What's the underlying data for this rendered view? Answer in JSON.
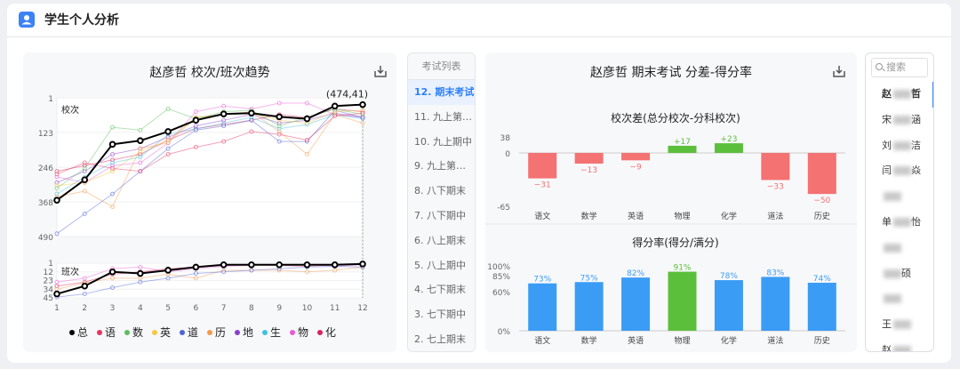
{
  "header": {
    "title": "学生个人分析",
    "icon": "user-icon",
    "accent": "#3b82f6"
  },
  "trend": {
    "title": "赵彦哲 校次/班次趋势",
    "school_label": "校次",
    "class_label": "班次",
    "annotation": "(474,41)",
    "x": [
      1,
      2,
      3,
      4,
      5,
      6,
      7,
      8,
      9,
      10,
      11,
      12
    ],
    "school_ticks": [
      1,
      123,
      246,
      368,
      490
    ],
    "class_ticks": [
      1,
      12,
      23,
      34,
      45
    ],
    "series": [
      {
        "name": "总",
        "color": "#000000",
        "school": [
          362,
          290,
          165,
          152,
          120,
          80,
          58,
          55,
          68,
          75,
          30,
          25
        ],
        "class": [
          40,
          30,
          12,
          14,
          10,
          6,
          3,
          3,
          3,
          3,
          3,
          2
        ]
      },
      {
        "name": "语",
        "color": "#e8335f",
        "school": [
          270,
          230,
          250,
          260,
          200,
          175,
          155,
          120,
          130,
          150,
          65,
          55
        ]
      },
      {
        "name": "数",
        "color": "#5cbf5c",
        "school": [
          320,
          250,
          105,
          115,
          40,
          75,
          50,
          45,
          100,
          70,
          40,
          60
        ]
      },
      {
        "name": "英",
        "color": "#f5c842",
        "school": [
          310,
          300,
          260,
          190,
          150,
          70,
          60,
          55,
          80,
          90,
          50,
          45
        ]
      },
      {
        "name": "道",
        "color": "#4f63d8",
        "school": [
          480,
          410,
          340,
          260,
          180,
          115,
          100,
          80,
          155,
          155,
          45,
          70
        ],
        "class": [
          44,
          40,
          32,
          25,
          20,
          14,
          12,
          10,
          8,
          6,
          5,
          6
        ]
      },
      {
        "name": "历",
        "color": "#f39a4b",
        "school": [
          350,
          330,
          385,
          180,
          160,
          70,
          60,
          50,
          120,
          200,
          60,
          90
        ],
        "class": [
          34,
          26,
          20,
          20,
          15,
          20,
          10,
          10,
          10,
          12,
          10,
          6
        ]
      },
      {
        "name": "地",
        "color": "#8b3fd1",
        "school": [
          300,
          260,
          200,
          180,
          140,
          100,
          80,
          60,
          90,
          80,
          55,
          70
        ]
      },
      {
        "name": "生",
        "color": "#3fc1e0",
        "school": [
          340,
          280,
          230,
          210,
          130,
          110,
          90,
          70,
          110,
          95,
          60,
          75
        ]
      },
      {
        "name": "物",
        "color": "#e85ad6",
        "school": [
          280,
          300,
          240,
          230,
          160,
          50,
          30,
          40,
          20,
          20,
          60,
          70
        ],
        "class": [
          25,
          20,
          8,
          6,
          12,
          8,
          5,
          4,
          3,
          3,
          5,
          3
        ]
      },
      {
        "name": "化",
        "color": "#d8235c",
        "school": [
          260,
          240,
          220,
          200,
          150,
          110,
          95,
          80,
          60,
          70,
          40,
          50
        ],
        "class": [
          30,
          25,
          15,
          12,
          8,
          6,
          4,
          3,
          4,
          5,
          3,
          2
        ]
      }
    ]
  },
  "exams": {
    "header": "考试列表",
    "items": [
      "12. 期末考试",
      "11. 九上第二...",
      "10. 九上期中",
      "9. 九上第一...",
      "8. 八下期末",
      "7. 八下期中",
      "6. 八上期末",
      "5. 八上期中",
      "4. 七下期末",
      "3. 七下期中",
      "2. 七上期末"
    ],
    "active_index": 0
  },
  "analysis": {
    "title": "赵彦哲 期末考试 分差-得分率",
    "diff_title": "校次差(总分校次-分科校次)",
    "rate_title": "得分率(得分/满分)"
  },
  "chart_data": [
    {
      "type": "bar",
      "title": "校次差(总分校次-分科校次)",
      "categories": [
        "语文",
        "数学",
        "英语",
        "物理",
        "化学",
        "道法",
        "历史"
      ],
      "values": [
        -31,
        -13,
        -9,
        17,
        23,
        -33,
        -50
      ],
      "value_labels": [
        "−31",
        "−13",
        "−9",
        "+17",
        "+23",
        "−33",
        "−50"
      ],
      "ylim": [
        -65,
        38
      ],
      "ticks": [
        38,
        0,
        -65
      ],
      "positive_color": "#5cbf3c",
      "negative_color": "#f47272"
    },
    {
      "type": "bar",
      "title": "得分率(得分/满分)",
      "categories": [
        "语文",
        "数学",
        "英语",
        "物理",
        "化学",
        "道法",
        "历史"
      ],
      "values": [
        73,
        75,
        82,
        91,
        78,
        83,
        74
      ],
      "value_labels": [
        "73%",
        "75%",
        "82%",
        "91%",
        "78%",
        "83%",
        "74%"
      ],
      "ylim": [
        0,
        100
      ],
      "ticks": [
        "100%",
        "85%",
        "60%",
        "0%"
      ],
      "tick_values": [
        100,
        85,
        60,
        0
      ],
      "bar_color": "#3b9cf5",
      "highlight_color": "#5cbf3c",
      "highlight_index": 3
    }
  ],
  "students": {
    "search_placeholder": "搜索",
    "items": [
      {
        "pre": "赵",
        "post": "哲"
      },
      {
        "pre": "宋",
        "post": "涵"
      },
      {
        "pre": "刘",
        "post": "洁"
      },
      {
        "pre": "闫",
        "post": "焱"
      },
      {
        "pre": "",
        "post": ""
      },
      {
        "pre": "单",
        "post": "怡"
      },
      {
        "pre": "",
        "post": ""
      },
      {
        "pre": "",
        "post": "硕"
      },
      {
        "pre": "",
        "post": ""
      },
      {
        "pre": "王",
        "post": ""
      },
      {
        "pre": "赵",
        "post": ""
      }
    ],
    "active_index": 0
  }
}
